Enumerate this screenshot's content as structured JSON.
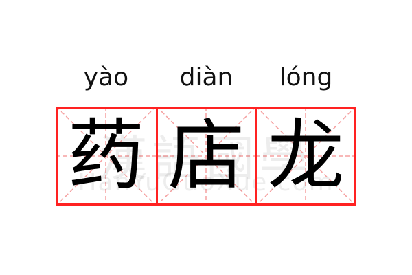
{
  "words": [
    {
      "pinyin": "yào",
      "hanzi": "药"
    },
    {
      "pinyin": "diàn",
      "hanzi": "店"
    },
    {
      "pinyin": "lóng",
      "hanzi": "龙"
    }
  ],
  "watermark": {
    "chinese": "漢語國學",
    "latin": "HanYuGuoXue.com"
  },
  "colors": {
    "grid_border": "#ff2222",
    "guide_lines": "#f5a0a0",
    "text": "#000000"
  }
}
